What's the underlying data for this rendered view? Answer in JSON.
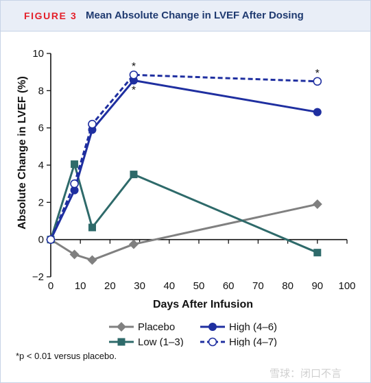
{
  "figure": {
    "label": "FIGURE 3",
    "title": "Mean Absolute Change in LVEF After Dosing",
    "footnote": "*p < 0.01 versus placebo.",
    "watermark": "雪球：闭口不言"
  },
  "colors": {
    "header_bg": "#e9eef7",
    "label_red": "#e4202a",
    "title_navy": "#1f3a70",
    "placebo": "#808080",
    "low": "#2e6a6a",
    "high": "#1f2fa0"
  },
  "chart_data": {
    "type": "line",
    "title": "",
    "xlabel": "Days After Infusion",
    "ylabel": "Absolute Change in LVEF (%)",
    "xlim": [
      0,
      100
    ],
    "ylim": [
      -2,
      10
    ],
    "xticks": [
      "0",
      "10",
      "20",
      "30",
      "40",
      "50",
      "60",
      "70",
      "80",
      "90",
      "100"
    ],
    "yticks": [
      "−2",
      "0",
      "2",
      "4",
      "6",
      "8",
      "10"
    ],
    "grid": false,
    "legend_position": "bottom",
    "series": [
      {
        "name": "Placebo",
        "color": "#808080",
        "marker": "diamond",
        "dash": "solid",
        "points": [
          [
            0,
            0
          ],
          [
            8,
            -0.8
          ],
          [
            14,
            -1.1
          ],
          [
            28,
            -0.25
          ],
          [
            90,
            1.9
          ]
        ]
      },
      {
        "name": "Low (1–3)",
        "color": "#2e6a6a",
        "marker": "square",
        "dash": "solid",
        "points": [
          [
            0,
            0
          ],
          [
            8,
            4.05
          ],
          [
            14,
            0.65
          ],
          [
            28,
            3.5
          ],
          [
            90,
            -0.7
          ]
        ]
      },
      {
        "name": "High (4–6)",
        "color": "#1f2fa0",
        "marker": "circle-filled",
        "dash": "solid",
        "points": [
          [
            0,
            0
          ],
          [
            8,
            2.65
          ],
          [
            14,
            5.9
          ],
          [
            28,
            8.55
          ],
          [
            90,
            6.85
          ]
        ]
      },
      {
        "name": "High (4–7)",
        "color": "#1f2fa0",
        "marker": "circle-open",
        "dash": "dashed",
        "points": [
          [
            0,
            0
          ],
          [
            8,
            3.0
          ],
          [
            14,
            6.2
          ],
          [
            28,
            8.85
          ],
          [
            90,
            8.5
          ]
        ]
      }
    ],
    "annotations": [
      {
        "text": "*",
        "x": 28,
        "y": 8.85,
        "placement": "above"
      },
      {
        "text": "*",
        "x": 28,
        "y": 8.55,
        "placement": "below"
      },
      {
        "text": "*",
        "x": 90,
        "y": 8.5,
        "placement": "above"
      }
    ]
  }
}
